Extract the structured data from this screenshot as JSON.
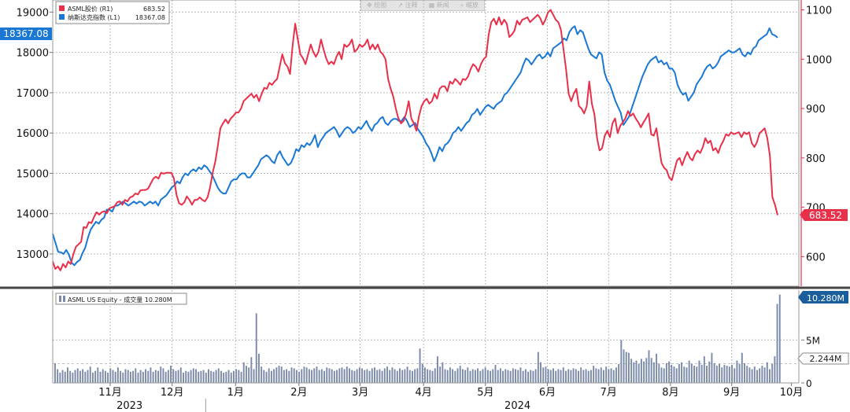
{
  "toolbar": {
    "items": [
      "✥ 绘图",
      "↗ 注释",
      "▦ 新闻",
      "⌕ 缩放"
    ]
  },
  "chart_data": [
    {
      "type": "line",
      "series": [
        {
          "name": "ASML股价 (R1)",
          "last_value": "683.52",
          "axis": "right",
          "color": "#e8304a",
          "values": [
            590,
            575,
            580,
            572,
            585,
            578,
            590,
            585,
            605,
            620,
            625,
            630,
            660,
            658,
            670,
            668,
            680,
            690,
            685,
            690,
            692,
            688,
            698,
            700,
            702,
            710,
            712,
            705,
            715,
            712,
            720,
            722,
            728,
            726,
            734,
            735,
            735,
            738,
            748,
            758,
            762,
            758,
            770,
            768,
            770,
            770,
            770,
            758,
            725,
            708,
            705,
            710,
            722,
            715,
            705,
            715,
            715,
            720,
            715,
            712,
            720,
            740,
            770,
            792,
            825,
            860,
            870,
            878,
            870,
            880,
            885,
            892,
            892,
            900,
            915,
            920,
            925,
            930,
            922,
            928,
            915,
            930,
            942,
            940,
            952,
            948,
            955,
            960,
            985,
            1010,
            992,
            985,
            970,
            1028,
            1072,
            1040,
            1010,
            1002,
            990,
            1010,
            1030,
            1015,
            1005,
            1015,
            1040,
            1020,
            1002,
            990,
            995,
            990,
            1005,
            1015,
            1000,
            1030,
            1025,
            1030,
            1040,
            1015,
            1020,
            1030,
            1025,
            1030,
            1040,
            1020,
            1030,
            1020,
            1030,
            1015,
            1010,
            1000,
            960,
            940,
            925,
            900,
            880,
            870,
            875,
            890,
            915,
            880,
            870,
            855,
            885,
            905,
            915,
            920,
            910,
            915,
            930,
            920,
            940,
            945,
            945,
            935,
            955,
            950,
            960,
            955,
            948,
            960,
            958,
            965,
            980,
            990,
            985,
            975,
            990,
            1000,
            1005,
            1050,
            1075,
            1082,
            1070,
            1085,
            1070,
            1080,
            1072,
            1045,
            1050,
            1058,
            1078,
            1070,
            1080,
            1082,
            1085,
            1075,
            1080,
            1085,
            1090,
            1083,
            1070,
            1080,
            1095,
            1100,
            1090,
            1080,
            1075,
            1060,
            1020,
            980,
            930,
            915,
            930,
            940,
            905,
            900,
            890,
            905,
            955,
            910,
            888,
            840,
            815,
            820,
            845,
            855,
            842,
            870,
            880,
            850,
            865,
            872,
            880,
            895,
            885,
            890,
            880,
            872,
            862,
            872,
            880,
            890,
            848,
            845,
            860,
            825,
            790,
            780,
            775,
            760,
            755,
            775,
            795,
            800,
            785,
            800,
            812,
            800,
            795,
            808,
            815,
            810,
            822,
            840,
            830,
            835,
            815,
            820,
            810,
            825,
            835,
            848,
            845,
            852,
            848,
            850,
            852,
            842,
            852,
            848,
            852,
            830,
            822,
            832,
            850,
            855,
            860,
            840,
            805,
            720,
            705,
            684
          ]
        },
        {
          "name": "纳斯达克指数 (L1)",
          "last_value": "18367.08",
          "axis": "left",
          "color": "#1a78d4",
          "values": [
            13500,
            13280,
            13050,
            13040,
            13000,
            13100,
            12980,
            12780,
            12720,
            12800,
            12850,
            13020,
            13150,
            13400,
            13600,
            13700,
            13800,
            13750,
            13850,
            13900,
            14100,
            14100,
            14050,
            14200,
            14200,
            14250,
            14300,
            14250,
            14200,
            14250,
            14300,
            14250,
            14300,
            14280,
            14200,
            14250,
            14300,
            14250,
            14300,
            14200,
            14350,
            14400,
            14450,
            14550,
            14650,
            14700,
            14800,
            14750,
            14900,
            15000,
            14950,
            15050,
            15100,
            15050,
            15150,
            15100,
            15200,
            15150,
            15050,
            14950,
            14800,
            14650,
            14550,
            14500,
            14500,
            14650,
            14800,
            14850,
            14850,
            14950,
            15000,
            15000,
            14900,
            14900,
            15000,
            15100,
            15200,
            15350,
            15400,
            15450,
            15400,
            15300,
            15250,
            15450,
            15550,
            15400,
            15300,
            15200,
            15250,
            15400,
            15600,
            15550,
            15700,
            15650,
            15750,
            15700,
            15800,
            15950,
            15650,
            15800,
            15900,
            16000,
            16050,
            16100,
            16150,
            16050,
            15900,
            16000,
            16100,
            16150,
            16100,
            16000,
            16050,
            16150,
            16100,
            16200,
            16300,
            16150,
            16050,
            16200,
            16250,
            16350,
            16400,
            16250,
            16200,
            16300,
            16350,
            16350,
            16300,
            16300,
            16400,
            16300,
            16150,
            16200,
            16250,
            16100,
            16000,
            15900,
            15750,
            15650,
            15500,
            15300,
            15450,
            15650,
            15550,
            15700,
            15750,
            15850,
            16000,
            16050,
            16150,
            16050,
            16150,
            16250,
            16300,
            16450,
            16500,
            16600,
            16450,
            16550,
            16650,
            16700,
            16650,
            16600,
            16700,
            16750,
            16800,
            16950,
            17000,
            17100,
            17200,
            17300,
            17400,
            17500,
            17700,
            17850,
            17800,
            17700,
            17800,
            17900,
            17950,
            17850,
            17900,
            18000,
            17900,
            18100,
            18150,
            18200,
            18250,
            18350,
            18300,
            18500,
            18600,
            18650,
            18450,
            18550,
            18500,
            18300,
            18100,
            17950,
            17900,
            17850,
            18000,
            17950,
            17500,
            17300,
            17200,
            17000,
            16800,
            16650,
            16500,
            16200,
            16300,
            16400,
            16600,
            16800,
            17000,
            17200,
            17400,
            17550,
            17700,
            17800,
            17850,
            17900,
            17750,
            17800,
            17700,
            17750,
            17600,
            17600,
            17500,
            17200,
            17050,
            16950,
            17000,
            16800,
            16900,
            17000,
            17200,
            17300,
            17400,
            17550,
            17650,
            17700,
            17600,
            17650,
            17750,
            17900,
            17950,
            18000,
            18050,
            18000,
            18000,
            18050,
            18100,
            17950,
            17900,
            18000,
            17950,
            18100,
            18150,
            18300,
            18350,
            18400,
            18450,
            18600,
            18450,
            18420,
            18367
          ]
        }
      ],
      "left_axis": {
        "ylim": [
          12200,
          19300
        ],
        "ticks": [
          "19000",
          "18000",
          "17000",
          "16000",
          "15000",
          "14000",
          "13000"
        ],
        "tick_values": [
          19000,
          18000,
          17000,
          16000,
          15000,
          14000,
          13000
        ]
      },
      "right_axis": {
        "ylim": [
          540,
          1120
        ],
        "ticks": [
          "1100",
          "1000",
          "900",
          "800",
          "700",
          "600"
        ],
        "tick_values": [
          1100,
          1000,
          900,
          800,
          700,
          600
        ]
      },
      "grid": true,
      "legend_placement": "top-left"
    },
    {
      "type": "bar",
      "series": [
        {
          "name": "ASML US Equity - 成交量 10.280M",
          "last_value": "10.280M",
          "color": "#7a8aa8",
          "values": [
            2.3,
            1.6,
            1.2,
            1.5,
            1.3,
            1.8,
            1.4,
            1.2,
            1.5,
            1.7,
            1.4,
            1.6,
            1.3,
            1.5,
            1.9,
            1.2,
            1.4,
            1.8,
            1.3,
            1.6,
            1.4,
            1.2,
            1.7,
            1.5,
            1.3,
            1.8,
            1.4,
            1.2,
            1.6,
            1.5,
            1.3,
            1.4,
            1.7,
            1.2,
            1.5,
            1.3,
            1.6,
            1.4,
            1.8,
            1.3,
            1.5,
            1.4,
            1.9,
            1.7,
            1.3,
            1.5,
            2.0,
            1.6,
            1.4,
            1.5,
            1.8,
            1.2,
            1.4,
            1.3,
            1.5,
            1.7,
            1.6,
            1.3,
            1.4,
            1.5,
            1.2,
            1.6,
            1.4,
            1.3,
            1.5,
            1.7,
            1.4,
            1.2,
            1.3,
            1.5,
            1.2,
            1.4,
            1.6,
            1.5,
            1.3,
            2.4,
            2.0,
            1.8,
            3.0,
            1.6,
            8.1,
            3.4,
            1.9,
            1.5,
            1.3,
            1.7,
            1.4,
            1.6,
            1.8,
            2.0,
            1.9,
            1.5,
            1.6,
            1.4,
            1.8,
            1.7,
            1.5,
            1.3,
            1.6,
            1.9,
            1.8,
            1.6,
            1.5,
            1.7,
            1.9,
            1.5,
            1.6,
            1.4,
            1.8,
            1.7,
            1.6,
            1.4,
            1.5,
            1.7,
            1.8,
            1.6,
            1.9,
            1.7,
            1.5,
            1.4,
            1.6,
            1.8,
            1.7,
            1.5,
            1.6,
            1.4,
            1.7,
            1.8,
            1.5,
            1.6,
            1.4,
            1.7,
            1.9,
            1.5,
            1.8,
            1.6,
            1.4,
            1.7,
            1.5,
            1.6,
            1.9,
            1.5,
            1.4,
            1.6,
            1.7,
            4.0,
            2.2,
            1.8,
            1.6,
            1.5,
            1.4,
            1.7,
            3.1,
            1.9,
            2.4,
            1.6,
            1.5,
            1.8,
            1.6,
            1.4,
            1.7,
            2.0,
            1.6,
            1.5,
            1.8,
            1.4,
            1.6,
            1.5,
            1.7,
            1.4,
            1.6,
            1.8,
            1.5,
            1.4,
            1.6,
            2.1,
            1.5,
            1.7,
            1.4,
            1.6,
            1.5,
            1.4,
            1.7,
            1.6,
            1.5,
            1.8,
            1.4,
            1.6,
            1.3,
            1.5,
            1.4,
            1.6,
            3.6,
            2.4,
            1.8,
            1.9,
            1.6,
            1.5,
            1.7,
            1.4,
            1.6,
            1.5,
            1.8,
            1.4,
            1.6,
            1.5,
            1.7,
            1.6,
            1.4,
            1.8,
            1.5,
            1.6,
            1.4,
            1.5,
            2.0,
            1.7,
            1.6,
            1.8,
            1.5,
            1.9,
            1.6,
            1.7,
            1.5,
            1.8,
            2.2,
            5.0,
            3.9,
            3.6,
            3.5,
            2.8,
            2.4,
            2.6,
            2.2,
            2.8,
            2.5,
            2.9,
            3.8,
            2.9,
            2.4,
            3.4,
            2.2,
            1.8,
            1.7,
            2.3,
            2.5,
            2.1,
            1.9,
            1.7,
            2.2,
            2.4,
            1.9,
            1.8,
            2.6,
            2.2,
            2.0,
            1.9,
            2.6,
            2.1,
            3.1,
            2.0,
            2.5,
            3.5,
            2.3,
            2.0,
            2.2,
            1.8,
            2.1,
            2.0,
            1.9,
            2.1,
            1.7,
            2.6,
            2.2,
            3.5,
            2.3,
            2.0,
            1.8,
            1.6,
            1.9,
            1.5,
            1.7,
            2.0,
            1.8,
            2.4,
            1.6,
            2.2,
            3.1,
            9.2,
            10.28
          ]
        }
      ],
      "ylim": [
        0,
        10.8
      ],
      "ticks": [
        "5M",
        "0"
      ],
      "tick_values": [
        5,
        0
      ],
      "ref_label": "2.244M",
      "ref_value": 2.244,
      "grid": true
    }
  ],
  "x_axis": {
    "month_labels": [
      "11月",
      "12月",
      "1月",
      "2月",
      "3月",
      "4月",
      "5月",
      "6月",
      "7月",
      "8月",
      "9月",
      "10月"
    ],
    "month_fractions": [
      0.077,
      0.16,
      0.245,
      0.33,
      0.412,
      0.497,
      0.58,
      0.663,
      0.745,
      0.828,
      0.91,
      0.99
    ],
    "year_labels": [
      "2023",
      "2024"
    ],
    "year_fractions": [
      0.103,
      0.623
    ],
    "year_divider_fraction": 0.205
  },
  "colors": {
    "asml": "#e8304a",
    "nasdaq": "#1a78d4",
    "volume": "#7a8aa8"
  }
}
